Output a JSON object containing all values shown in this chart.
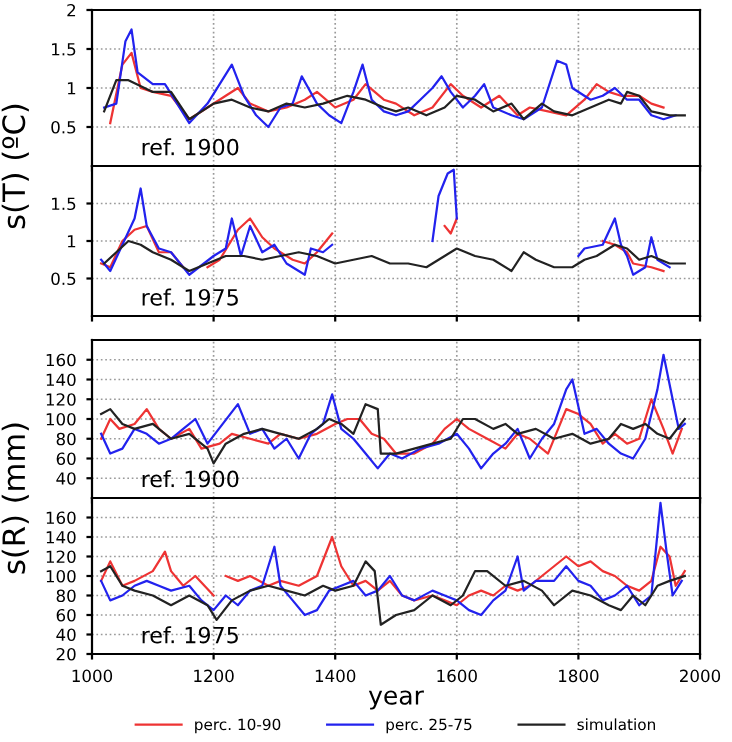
{
  "chart_data": [
    {
      "type": "line",
      "ylabel": "s(T) (ºC)",
      "annotations": [
        "ref. 1900"
      ],
      "xlim": [
        1000,
        2000
      ],
      "ylim": [
        0,
        2
      ],
      "yticks": [
        0.5,
        1,
        1.5,
        2
      ],
      "grid": true,
      "tick_labels": "y",
      "line_style": "solid",
      "marker": "none",
      "series": [
        {
          "color": "#ee3333",
          "x": [
            1030,
            1050,
            1065,
            1080,
            1100,
            1130,
            1160,
            1190,
            1220,
            1240,
            1260,
            1290,
            1320,
            1350,
            1370,
            1400,
            1430,
            1450,
            1480,
            1500,
            1530,
            1560,
            1590,
            1610,
            1640,
            1670,
            1700,
            1720,
            1750,
            1780,
            1810,
            1830,
            1850,
            1870,
            1900,
            1920,
            1940
          ],
          "values": [
            0.55,
            1.3,
            1.45,
            1.0,
            0.95,
            0.9,
            0.6,
            0.75,
            0.9,
            1.0,
            0.8,
            0.7,
            0.75,
            0.85,
            0.95,
            0.75,
            0.85,
            1.05,
            0.85,
            0.8,
            0.65,
            0.75,
            1.05,
            0.9,
            0.75,
            0.9,
            0.65,
            0.75,
            0.7,
            0.65,
            0.85,
            1.05,
            0.95,
            0.9,
            0.9,
            0.8,
            0.75
          ]
        },
        {
          "color": "#2222ee",
          "x": [
            1020,
            1040,
            1055,
            1065,
            1075,
            1100,
            1120,
            1140,
            1160,
            1190,
            1210,
            1230,
            1250,
            1270,
            1290,
            1310,
            1330,
            1345,
            1370,
            1390,
            1410,
            1430,
            1445,
            1460,
            1480,
            1500,
            1520,
            1540,
            1560,
            1575,
            1590,
            1610,
            1630,
            1645,
            1660,
            1690,
            1710,
            1740,
            1765,
            1780,
            1790,
            1820,
            1840,
            1860,
            1880,
            1900,
            1920,
            1940,
            1960
          ],
          "values": [
            0.75,
            0.8,
            1.6,
            1.75,
            1.2,
            1.05,
            1.05,
            0.8,
            0.55,
            0.8,
            1.05,
            1.3,
            0.9,
            0.65,
            0.5,
            0.75,
            0.8,
            1.15,
            0.8,
            0.65,
            0.55,
            0.95,
            1.3,
            0.85,
            0.7,
            0.65,
            0.7,
            0.85,
            1.0,
            1.15,
            0.95,
            0.75,
            0.9,
            1.05,
            0.75,
            0.65,
            0.6,
            0.75,
            1.35,
            1.3,
            1.0,
            0.85,
            0.9,
            1.0,
            0.85,
            0.85,
            0.65,
            0.6,
            0.65
          ]
        },
        {
          "color": "#222222",
          "x": [
            1020,
            1040,
            1060,
            1100,
            1130,
            1160,
            1200,
            1230,
            1260,
            1290,
            1320,
            1350,
            1380,
            1420,
            1450,
            1480,
            1500,
            1520,
            1550,
            1580,
            1600,
            1630,
            1660,
            1690,
            1710,
            1740,
            1760,
            1790,
            1820,
            1850,
            1870,
            1880,
            1900,
            1920,
            1950,
            1975
          ],
          "values": [
            0.7,
            1.1,
            1.1,
            0.95,
            0.95,
            0.6,
            0.8,
            0.85,
            0.75,
            0.7,
            0.8,
            0.75,
            0.8,
            0.9,
            0.85,
            0.75,
            0.7,
            0.75,
            0.65,
            0.75,
            0.9,
            0.85,
            0.7,
            0.8,
            0.6,
            0.8,
            0.7,
            0.65,
            0.75,
            0.85,
            0.8,
            0.95,
            0.9,
            0.7,
            0.65,
            0.65
          ]
        }
      ]
    },
    {
      "type": "line",
      "annotations": [
        "ref. 1975"
      ],
      "xlim": [
        1000,
        2000
      ],
      "ylim": [
        0,
        2
      ],
      "yticks": [
        0.5,
        1,
        1.5
      ],
      "grid": true,
      "tick_labels": "y",
      "line_style": "solid",
      "marker": "none",
      "series": [
        {
          "color": "#ee3333",
          "x": [
            1015,
            1030,
            1050,
            1070,
            1090,
            1110,
            1130,
            1150,
            1170,
            1190,
            1210,
            1240,
            1260,
            1280,
            1300,
            1330,
            1350,
            1370,
            1385,
            1395,
            1490,
            1580,
            1590,
            1600,
            1720,
            1840,
            1860,
            1880,
            1890,
            1920,
            1940
          ],
          "values": [
            0.7,
            0.65,
            1.0,
            1.15,
            1.2,
            0.85,
            0.85,
            0.65,
            null,
            0.65,
            0.75,
            1.15,
            1.3,
            1.05,
            0.9,
            0.75,
            0.7,
            0.85,
            1.0,
            1.1,
            null,
            1.2,
            1.1,
            1.3,
            null,
            1.0,
            0.95,
            0.85,
            0.7,
            0.65,
            0.6
          ]
        },
        {
          "color": "#2222ee",
          "x": [
            1015,
            1030,
            1050,
            1070,
            1080,
            1090,
            1110,
            1130,
            1160,
            1200,
            1220,
            1230,
            1245,
            1260,
            1280,
            1300,
            1320,
            1340,
            1350,
            1360,
            1380,
            1395,
            1480,
            1560,
            1570,
            1585,
            1595,
            1600,
            1700,
            1800,
            1810,
            1840,
            1860,
            1870,
            1880,
            1890,
            1910,
            1920,
            1930,
            1950
          ],
          "values": [
            0.75,
            0.6,
            0.95,
            1.3,
            1.7,
            1.2,
            0.9,
            0.85,
            0.55,
            0.8,
            0.9,
            1.3,
            0.8,
            1.2,
            0.85,
            0.95,
            0.7,
            0.6,
            0.55,
            0.9,
            0.85,
            0.95,
            null,
            1.0,
            1.6,
            1.9,
            1.95,
            1.3,
            null,
            0.8,
            0.9,
            0.95,
            1.3,
            0.95,
            0.8,
            0.55,
            0.65,
            1.05,
            0.75,
            0.65
          ]
        },
        {
          "color": "#222222",
          "x": [
            1020,
            1040,
            1060,
            1080,
            1100,
            1130,
            1160,
            1190,
            1220,
            1250,
            1280,
            1310,
            1340,
            1370,
            1400,
            1430,
            1460,
            1490,
            1520,
            1550,
            1580,
            1600,
            1630,
            1660,
            1690,
            1710,
            1730,
            1760,
            1790,
            1810,
            1830,
            1860,
            1880,
            1900,
            1920,
            1950,
            1975
          ],
          "values": [
            0.7,
            0.85,
            1.0,
            0.95,
            0.85,
            0.75,
            0.6,
            0.7,
            0.8,
            0.8,
            0.75,
            0.8,
            0.85,
            0.8,
            0.7,
            0.75,
            0.8,
            0.7,
            0.7,
            0.65,
            0.8,
            0.9,
            0.8,
            0.75,
            0.6,
            0.85,
            0.75,
            0.65,
            0.65,
            0.75,
            0.8,
            0.95,
            0.9,
            0.75,
            0.8,
            0.7,
            0.7
          ]
        }
      ]
    },
    {
      "type": "line",
      "ylabel": "s(R) (mm)",
      "annotations": [
        "ref. 1900"
      ],
      "xlim": [
        1000,
        2000
      ],
      "ylim": [
        20,
        180
      ],
      "yticks": [
        40,
        60,
        80,
        100,
        120,
        140,
        160
      ],
      "grid": true,
      "tick_labels": "y",
      "line_style": "solid",
      "marker": "none",
      "series": [
        {
          "color": "#ee3333",
          "x": [
            1015,
            1030,
            1045,
            1070,
            1090,
            1110,
            1130,
            1160,
            1180,
            1210,
            1230,
            1260,
            1290,
            1310,
            1340,
            1370,
            1400,
            1420,
            1440,
            1460,
            1480,
            1500,
            1530,
            1560,
            1580,
            1600,
            1620,
            1650,
            1680,
            1700,
            1720,
            1750,
            1780,
            1800,
            1820,
            1840,
            1860,
            1880,
            1900,
            1920,
            1940,
            1955,
            1970
          ],
          "values": [
            80,
            100,
            90,
            95,
            110,
            90,
            80,
            90,
            70,
            75,
            85,
            80,
            75,
            85,
            80,
            85,
            95,
            100,
            100,
            85,
            80,
            65,
            65,
            75,
            90,
            100,
            90,
            80,
            70,
            85,
            80,
            65,
            110,
            105,
            95,
            75,
            85,
            75,
            80,
            120,
            90,
            65,
            90
          ]
        },
        {
          "color": "#2222ee",
          "x": [
            1015,
            1030,
            1050,
            1070,
            1090,
            1110,
            1130,
            1150,
            1170,
            1190,
            1215,
            1240,
            1260,
            1280,
            1300,
            1320,
            1340,
            1360,
            1380,
            1395,
            1410,
            1430,
            1450,
            1470,
            1490,
            1510,
            1540,
            1570,
            1600,
            1620,
            1640,
            1660,
            1680,
            1700,
            1720,
            1740,
            1760,
            1780,
            1790,
            1810,
            1830,
            1850,
            1870,
            1890,
            1910,
            1930,
            1940,
            1955,
            1965,
            1975
          ],
          "values": [
            85,
            65,
            70,
            90,
            85,
            75,
            80,
            90,
            100,
            75,
            95,
            115,
            85,
            90,
            70,
            80,
            60,
            85,
            95,
            125,
            90,
            80,
            65,
            50,
            65,
            60,
            70,
            75,
            85,
            70,
            50,
            65,
            75,
            90,
            60,
            80,
            95,
            130,
            140,
            85,
            90,
            75,
            65,
            60,
            80,
            130,
            165,
            120,
            90,
            95
          ]
        },
        {
          "color": "#222222",
          "x": [
            1015,
            1030,
            1050,
            1070,
            1100,
            1130,
            1160,
            1190,
            1200,
            1220,
            1250,
            1280,
            1310,
            1340,
            1370,
            1390,
            1410,
            1430,
            1450,
            1470,
            1475,
            1500,
            1530,
            1560,
            1590,
            1610,
            1630,
            1660,
            1680,
            1700,
            1730,
            1760,
            1790,
            1820,
            1850,
            1870,
            1890,
            1910,
            1930,
            1950,
            1975
          ],
          "values": [
            105,
            110,
            95,
            90,
            95,
            80,
            85,
            70,
            55,
            75,
            85,
            90,
            85,
            80,
            90,
            100,
            95,
            85,
            115,
            110,
            65,
            65,
            70,
            75,
            80,
            100,
            100,
            90,
            95,
            85,
            90,
            80,
            85,
            75,
            80,
            95,
            90,
            95,
            85,
            80,
            100
          ]
        }
      ]
    },
    {
      "type": "line",
      "xlabel": "year",
      "annotations": [
        "ref. 1975"
      ],
      "xlim": [
        1000,
        2000
      ],
      "xticks": [
        1000,
        1200,
        1400,
        1600,
        1800,
        2000
      ],
      "ylim": [
        20,
        180
      ],
      "yticks": [
        20,
        40,
        60,
        80,
        100,
        120,
        140,
        160
      ],
      "grid": true,
      "legend": "bottom",
      "line_style": "solid",
      "marker": "none",
      "series": [
        {
          "name": "perc. 10-90",
          "color": "#ee3333",
          "x": [
            1015,
            1030,
            1050,
            1070,
            1100,
            1120,
            1130,
            1150,
            1170,
            1200,
            1210,
            1220,
            1240,
            1260,
            1290,
            1310,
            1340,
            1370,
            1395,
            1410,
            1430,
            1450,
            1470,
            1490,
            1510,
            1530,
            1560,
            1580,
            1600,
            1620,
            1640,
            1660,
            1680,
            1700,
            1720,
            1740,
            1760,
            1780,
            1800,
            1820,
            1840,
            1860,
            1880,
            1900,
            1920,
            1935,
            1950,
            1960,
            1975
          ],
          "values": [
            95,
            115,
            90,
            95,
            105,
            125,
            105,
            90,
            100,
            80,
            null,
            100,
            95,
            100,
            90,
            95,
            90,
            100,
            140,
            110,
            90,
            95,
            85,
            95,
            80,
            75,
            80,
            75,
            70,
            80,
            85,
            80,
            90,
            85,
            90,
            100,
            110,
            120,
            110,
            115,
            105,
            100,
            90,
            85,
            95,
            130,
            120,
            90,
            105
          ]
        },
        {
          "name": "perc. 25-75",
          "color": "#2222ee",
          "x": [
            1015,
            1030,
            1050,
            1070,
            1090,
            1110,
            1130,
            1160,
            1180,
            1200,
            1220,
            1240,
            1260,
            1280,
            1300,
            1310,
            1330,
            1350,
            1370,
            1390,
            1410,
            1430,
            1450,
            1470,
            1490,
            1510,
            1530,
            1560,
            1580,
            1600,
            1620,
            1640,
            1660,
            1680,
            1700,
            1710,
            1730,
            1760,
            1780,
            1800,
            1820,
            1840,
            1860,
            1880,
            1900,
            1920,
            1935,
            1945,
            1955,
            1970
          ],
          "values": [
            95,
            75,
            80,
            90,
            95,
            90,
            85,
            90,
            75,
            65,
            80,
            70,
            85,
            90,
            130,
            90,
            75,
            60,
            65,
            85,
            90,
            95,
            80,
            85,
            100,
            80,
            75,
            85,
            80,
            75,
            65,
            60,
            75,
            85,
            120,
            85,
            95,
            95,
            110,
            95,
            90,
            75,
            80,
            90,
            70,
            80,
            175,
            125,
            80,
            95
          ]
        },
        {
          "name": "simulation",
          "color": "#222222",
          "x": [
            1015,
            1030,
            1050,
            1070,
            1100,
            1130,
            1160,
            1190,
            1205,
            1230,
            1260,
            1290,
            1320,
            1350,
            1380,
            1400,
            1430,
            1450,
            1465,
            1475,
            1500,
            1530,
            1560,
            1590,
            1610,
            1630,
            1650,
            1680,
            1710,
            1740,
            1760,
            1790,
            1820,
            1850,
            1870,
            1890,
            1910,
            1930,
            1950,
            1975
          ],
          "values": [
            105,
            110,
            90,
            85,
            80,
            70,
            80,
            70,
            55,
            75,
            85,
            90,
            85,
            80,
            90,
            85,
            90,
            115,
            105,
            50,
            60,
            65,
            80,
            70,
            80,
            105,
            105,
            90,
            95,
            85,
            70,
            85,
            80,
            70,
            65,
            80,
            70,
            90,
            95,
            100
          ]
        }
      ]
    }
  ]
}
